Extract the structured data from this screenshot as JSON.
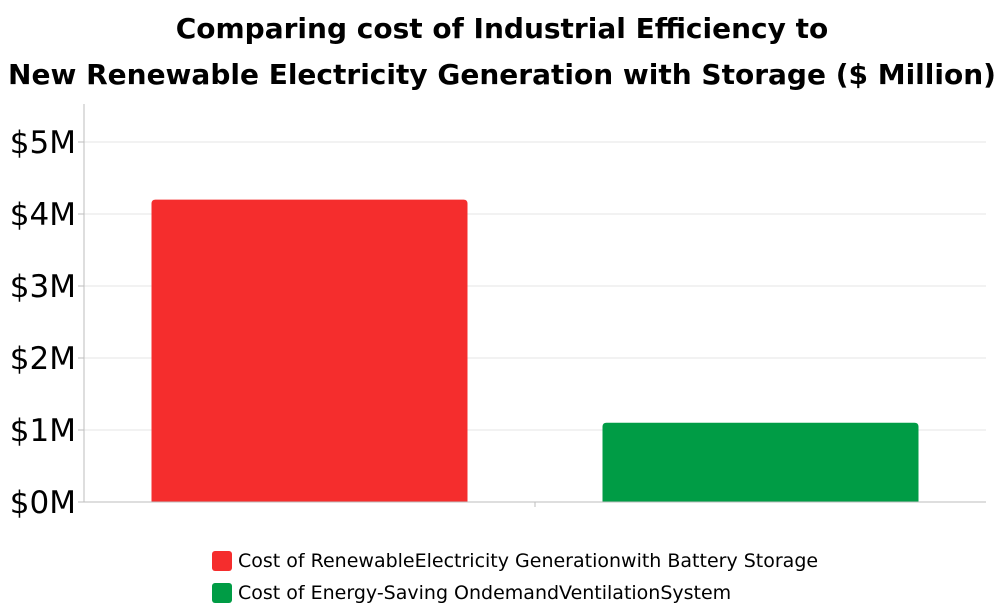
{
  "chart_data": {
    "type": "bar",
    "title": "Comparing cost of Industrial Efficiency to New Renewable Electricity Generation with Storage ($ Million)",
    "title_lines": [
      "Comparing cost of Industrial Efficiency to",
      "New Renewable Electricity Generation with Storage ($ Million)"
    ],
    "xlabel": "",
    "ylabel": "",
    "ylim": [
      0,
      5
    ],
    "yticks": [
      "$0M",
      "$1M",
      "$2M",
      "$3M",
      "$4M",
      "$5M"
    ],
    "grid": true,
    "legend_position": "bottom",
    "series": [
      {
        "name": "Cost of RenewableElectricity Generationwith Battery Storage",
        "value": 4.2,
        "color": "#f52d2d"
      },
      {
        "name": "Cost of Energy-Saving OndemandVentilationSystem",
        "value": 1.1,
        "color": "#009c45"
      }
    ]
  }
}
